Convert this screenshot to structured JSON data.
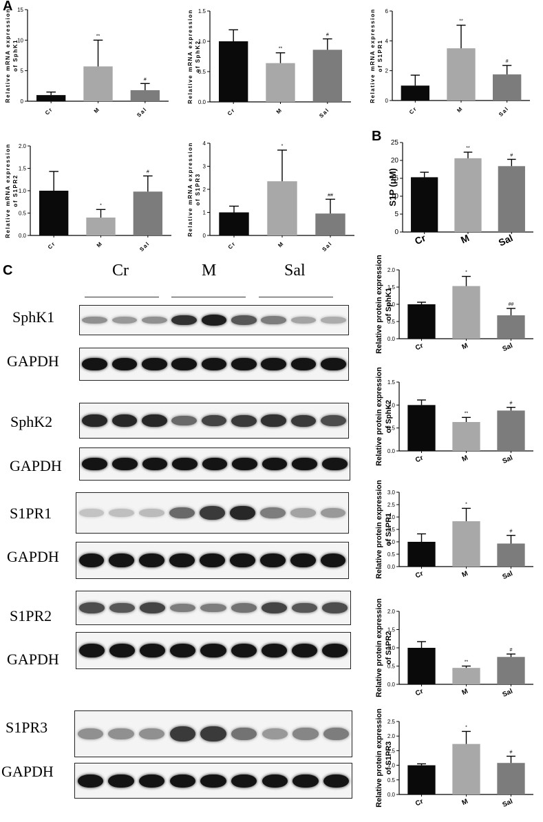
{
  "panels": {
    "A": "A",
    "B": "B",
    "C": "C"
  },
  "blot_lanes": [
    "Cr",
    "M",
    "Sal"
  ],
  "blot_labels": {
    "sphk1": "SphK1",
    "sphk2": "SphK2",
    "s1pr1": "S1PR1",
    "s1pr2": "S1PR2",
    "s1pr3": "S1PR3",
    "gapdh": "GAPDH"
  },
  "chart_data": [
    {
      "id": "mrna_sphk1",
      "panel": "A",
      "type": "bar",
      "categories": [
        "Cr",
        "M",
        "Sal"
      ],
      "values": [
        1.0,
        5.7,
        1.8
      ],
      "errors": [
        0.5,
        4.3,
        1.1
      ],
      "significance": [
        "",
        "**",
        "#"
      ],
      "ylabel": "Relative mRNA expression of SphK1",
      "ylim": [
        0,
        15
      ],
      "yticks": [
        "0",
        "5",
        "10",
        "15"
      ]
    },
    {
      "id": "mrna_sphk2",
      "panel": "A",
      "type": "bar",
      "categories": [
        "Cr",
        "M",
        "Sal"
      ],
      "values": [
        1.0,
        0.64,
        0.86
      ],
      "errors": [
        0.19,
        0.17,
        0.18
      ],
      "significance": [
        "",
        "**",
        "#"
      ],
      "ylabel": "Relative mRNA expression of SphK2",
      "ylim": [
        0,
        1.5
      ],
      "yticks": [
        "0.0",
        "0.5",
        "1.0",
        "1.5"
      ]
    },
    {
      "id": "mrna_s1pr1",
      "panel": "A",
      "type": "bar",
      "categories": [
        "Cr",
        "M",
        "Sal"
      ],
      "values": [
        1.0,
        3.5,
        1.75
      ],
      "errors": [
        0.7,
        1.55,
        0.6
      ],
      "significance": [
        "",
        "**",
        "#"
      ],
      "ylabel": "Relative mRNA expression of S1PR1",
      "ylim": [
        0,
        6
      ],
      "yticks": [
        "0",
        "2",
        "4",
        "6"
      ]
    },
    {
      "id": "mrna_s1pr2",
      "panel": "A",
      "type": "bar",
      "categories": [
        "Cr",
        "M",
        "Sal"
      ],
      "values": [
        1.0,
        0.4,
        0.98
      ],
      "errors": [
        0.43,
        0.18,
        0.35
      ],
      "significance": [
        "",
        "*",
        "#"
      ],
      "ylabel": "Relative mRNA expression of S1PR2",
      "ylim": [
        0,
        2.0
      ],
      "yticks": [
        "0.0",
        "0.5",
        "1.0",
        "1.5",
        "2.0"
      ]
    },
    {
      "id": "mrna_s1pr3",
      "panel": "A",
      "type": "bar",
      "categories": [
        "Cr",
        "M",
        "Sal"
      ],
      "values": [
        1.0,
        2.35,
        0.95
      ],
      "errors": [
        0.27,
        1.35,
        0.62
      ],
      "significance": [
        "",
        "*",
        "##"
      ],
      "ylabel": "Relative mRNA expression of S1PR3",
      "ylim": [
        0,
        4
      ],
      "yticks": [
        "0",
        "1",
        "2",
        "3",
        "4"
      ]
    },
    {
      "id": "s1p",
      "panel": "B",
      "type": "bar",
      "categories": [
        "Cr",
        "M",
        "Sal"
      ],
      "values": [
        15.3,
        20.6,
        18.4
      ],
      "errors": [
        1.4,
        1.7,
        1.9
      ],
      "significance": [
        "",
        "**",
        "#"
      ],
      "ylabel": "S1P (μM)",
      "ylim": [
        0,
        25
      ],
      "yticks": [
        "0",
        "5",
        "10",
        "15",
        "20",
        "25"
      ]
    },
    {
      "id": "prot_sphk1",
      "panel": "C",
      "type": "bar",
      "categories": [
        "Cr",
        "M",
        "Sal"
      ],
      "values": [
        1.0,
        1.53,
        0.68
      ],
      "errors": [
        0.06,
        0.28,
        0.2
      ],
      "significance": [
        "",
        "*",
        "##"
      ],
      "ylabel": "Relative protein expression of SphK1",
      "ylim": [
        0,
        2.0
      ],
      "yticks": [
        "0.0",
        "0.5",
        "1.0",
        "1.5",
        "2.0"
      ]
    },
    {
      "id": "prot_sphk2",
      "panel": "C",
      "type": "bar",
      "categories": [
        "Cr",
        "M",
        "Sal"
      ],
      "values": [
        1.0,
        0.63,
        0.88
      ],
      "errors": [
        0.11,
        0.1,
        0.07
      ],
      "significance": [
        "",
        "**",
        "#"
      ],
      "ylabel": "Relative protein expression of SphK2",
      "ylim": [
        0,
        1.5
      ],
      "yticks": [
        "0.0",
        "0.5",
        "1.0",
        "1.5"
      ]
    },
    {
      "id": "prot_s1pr1",
      "panel": "C",
      "type": "bar",
      "categories": [
        "Cr",
        "M",
        "Sal"
      ],
      "values": [
        1.0,
        1.83,
        0.93
      ],
      "errors": [
        0.32,
        0.52,
        0.33
      ],
      "significance": [
        "",
        "*",
        "#"
      ],
      "ylabel": "Relative protein expression of S1PR1",
      "ylim": [
        0,
        3.0
      ],
      "yticks": [
        "0.0",
        "0.5",
        "1.0",
        "1.5",
        "2.0",
        "2.5",
        "3.0"
      ]
    },
    {
      "id": "prot_s1pr2",
      "panel": "C",
      "type": "bar",
      "categories": [
        "Cr",
        "M",
        "Sal"
      ],
      "values": [
        1.0,
        0.45,
        0.75
      ],
      "errors": [
        0.17,
        0.05,
        0.08
      ],
      "significance": [
        "",
        "**",
        "#"
      ],
      "ylabel": "Relative protein expression of S1PR2",
      "ylim": [
        0,
        2.0
      ],
      "yticks": [
        "0.0",
        "0.5",
        "1.0",
        "1.5",
        "2.0"
      ]
    },
    {
      "id": "prot_s1pr3",
      "panel": "C",
      "type": "bar",
      "categories": [
        "Cr",
        "M",
        "Sal"
      ],
      "values": [
        1.0,
        1.73,
        1.08
      ],
      "errors": [
        0.05,
        0.43,
        0.23
      ],
      "significance": [
        "",
        "*",
        "#"
      ],
      "ylabel": "Relative protein expression of S1PR3",
      "ylim": [
        0,
        2.5
      ],
      "yticks": [
        "0.0",
        "0.5",
        "1.0",
        "1.5",
        "2.0",
        "2.5"
      ]
    }
  ],
  "colors": {
    "cr": "#0a0a0a",
    "m": "#a8a8a8",
    "sal": "#7c7c7c"
  }
}
